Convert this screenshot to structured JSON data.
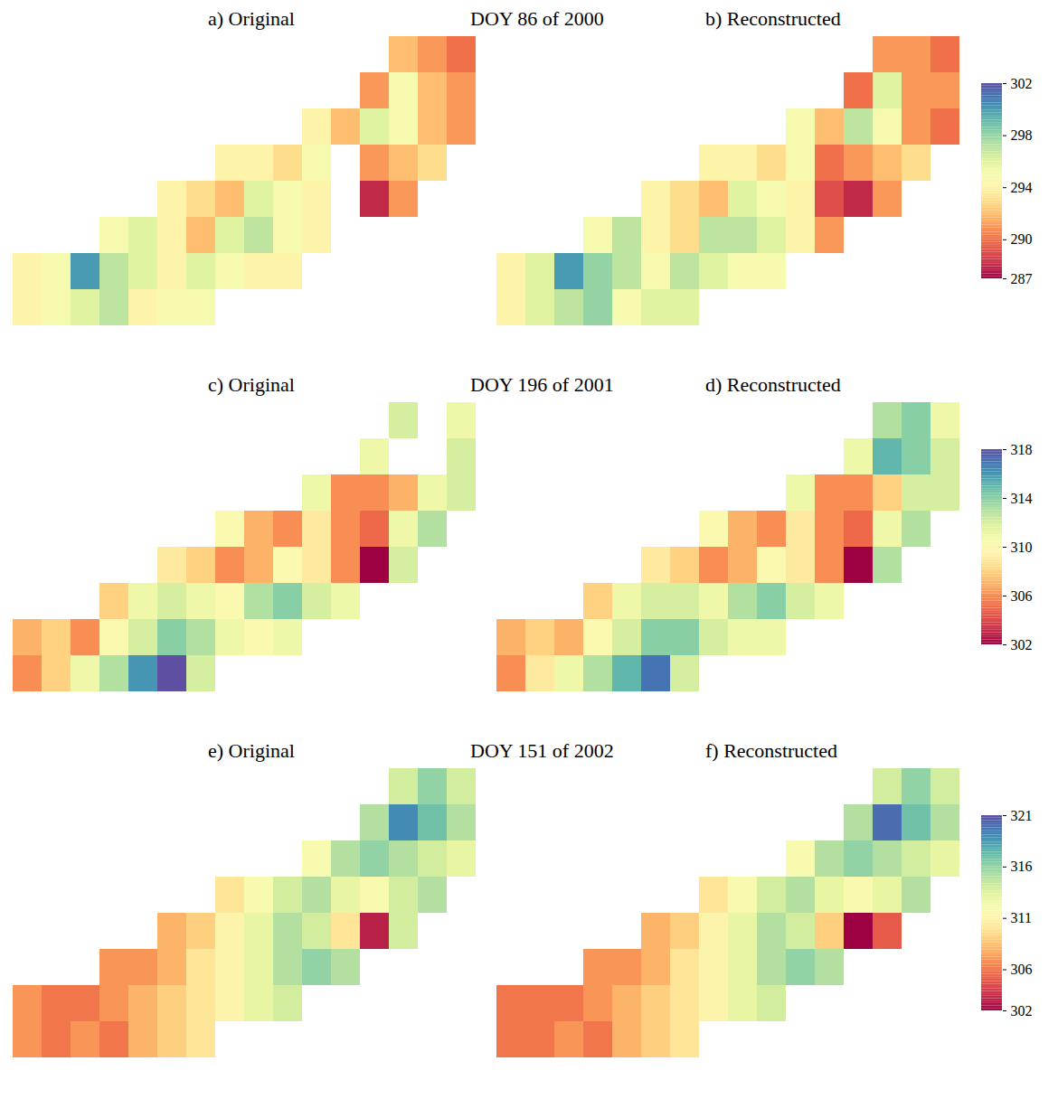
{
  "chart_data": [
    {
      "type": "heatmap",
      "title": "DOY 86 of 2000",
      "colorbar": {
        "range": [
          287,
          302
        ],
        "ticks": [
          302,
          298,
          294,
          290,
          287
        ]
      },
      "panels": [
        {
          "title": "a) Original",
          "cells": [
            [
              null,
              null,
              null,
              null,
              null,
              null,
              null,
              null,
              null,
              null,
              null,
              null,
              null,
              292,
              291,
              290
            ],
            [
              null,
              null,
              null,
              null,
              null,
              null,
              null,
              null,
              null,
              null,
              null,
              null,
              291,
              295,
              292,
              291
            ],
            [
              null,
              null,
              null,
              null,
              null,
              null,
              null,
              null,
              null,
              null,
              294,
              292,
              296,
              295,
              292,
              291
            ],
            [
              null,
              null,
              null,
              null,
              null,
              null,
              null,
              294,
              294,
              293,
              295,
              null,
              291,
              292,
              293,
              null
            ],
            [
              null,
              null,
              null,
              null,
              null,
              294,
              293,
              292,
              296,
              295,
              294,
              null,
              288,
              291,
              null,
              null
            ],
            [
              null,
              null,
              null,
              295,
              296,
              294,
              292,
              296,
              297,
              295,
              294,
              null,
              null,
              null,
              null,
              null
            ],
            [
              294,
              295,
              300,
              297,
              296,
              294,
              296,
              295,
              294,
              294,
              null,
              null,
              null,
              null,
              null,
              null
            ],
            [
              294,
              295,
              296,
              297,
              294,
              295,
              295,
              null,
              null,
              null,
              null,
              null,
              null,
              null,
              null,
              null
            ]
          ]
        },
        {
          "title": "b) Reconstructed",
          "cells": [
            [
              null,
              null,
              null,
              null,
              null,
              null,
              null,
              null,
              null,
              null,
              null,
              null,
              null,
              291,
              291,
              290
            ],
            [
              null,
              null,
              null,
              null,
              null,
              null,
              null,
              null,
              null,
              null,
              null,
              null,
              290,
              296,
              291,
              291
            ],
            [
              null,
              null,
              null,
              null,
              null,
              null,
              null,
              null,
              null,
              null,
              295,
              292,
              297,
              295,
              291,
              290
            ],
            [
              null,
              null,
              null,
              null,
              null,
              null,
              null,
              294,
              294,
              293,
              295,
              290,
              291,
              292,
              293,
              null
            ],
            [
              null,
              null,
              null,
              null,
              null,
              294,
              293,
              292,
              296,
              295,
              294,
              289,
              288,
              291,
              null,
              null
            ],
            [
              null,
              null,
              null,
              295,
              297,
              294,
              293,
              297,
              297,
              296,
              294,
              291,
              null,
              null,
              null,
              null
            ],
            [
              294,
              296,
              300,
              298,
              297,
              295,
              297,
              296,
              295,
              295,
              null,
              null,
              null,
              null,
              null,
              null
            ],
            [
              294,
              296,
              297,
              298,
              295,
              296,
              296,
              null,
              null,
              null,
              null,
              null,
              null,
              null,
              null,
              null
            ]
          ]
        }
      ]
    },
    {
      "type": "heatmap",
      "title": "DOY 196 of 2001",
      "colorbar": {
        "range": [
          302,
          318
        ],
        "ticks": [
          318,
          314,
          310,
          306,
          302
        ]
      },
      "panels": [
        {
          "title": "c) Original",
          "cells": [
            [
              null,
              null,
              null,
              null,
              null,
              null,
              null,
              null,
              null,
              null,
              null,
              null,
              null,
              312,
              null,
              311
            ],
            [
              null,
              null,
              null,
              null,
              null,
              null,
              null,
              null,
              null,
              null,
              null,
              null,
              311,
              null,
              null,
              312
            ],
            [
              null,
              null,
              null,
              null,
              null,
              null,
              null,
              null,
              null,
              null,
              311,
              306,
              306,
              307,
              311,
              312
            ],
            [
              null,
              null,
              null,
              null,
              null,
              null,
              null,
              310,
              307,
              306,
              309,
              306,
              305,
              311,
              313,
              null
            ],
            [
              null,
              null,
              null,
              null,
              null,
              309,
              308,
              306,
              307,
              310,
              309,
              306,
              302,
              312,
              null,
              null
            ],
            [
              null,
              null,
              null,
              308,
              311,
              312,
              311,
              310,
              313,
              314,
              312,
              311,
              null,
              null,
              null,
              null
            ],
            [
              307,
              308,
              306,
              310,
              312,
              314,
              313,
              311,
              310,
              311,
              null,
              null,
              null,
              null,
              null,
              null
            ],
            [
              306,
              308,
              311,
              313,
              316,
              318,
              312,
              null,
              null,
              null,
              null,
              null,
              null,
              null,
              null,
              null
            ]
          ]
        },
        {
          "title": "d) Reconstructed",
          "cells": [
            [
              null,
              null,
              null,
              null,
              null,
              null,
              null,
              null,
              null,
              null,
              null,
              null,
              null,
              313,
              314,
              311
            ],
            [
              null,
              null,
              null,
              null,
              null,
              null,
              null,
              null,
              null,
              null,
              null,
              null,
              311,
              315,
              314,
              312
            ],
            [
              null,
              null,
              null,
              null,
              null,
              null,
              null,
              null,
              null,
              null,
              311,
              306,
              306,
              308,
              312,
              312
            ],
            [
              null,
              null,
              null,
              null,
              null,
              null,
              null,
              310,
              307,
              306,
              309,
              306,
              305,
              311,
              313,
              null
            ],
            [
              null,
              null,
              null,
              null,
              null,
              309,
              308,
              306,
              307,
              310,
              309,
              306,
              302,
              313,
              null,
              null
            ],
            [
              null,
              null,
              null,
              308,
              311,
              312,
              312,
              311,
              313,
              314,
              312,
              311,
              null,
              null,
              null,
              null
            ],
            [
              307,
              308,
              307,
              310,
              312,
              314,
              314,
              312,
              311,
              311,
              null,
              null,
              null,
              null,
              null,
              null
            ],
            [
              306,
              309,
              311,
              313,
              315,
              317,
              312,
              null,
              null,
              null,
              null,
              null,
              null,
              null,
              null,
              null
            ]
          ]
        }
      ]
    },
    {
      "type": "heatmap",
      "title": "DOY 151 of 2002",
      "colorbar": {
        "range": [
          302,
          321
        ],
        "ticks": [
          321,
          316,
          311,
          306,
          302
        ]
      },
      "panels": [
        {
          "title": "e) Original",
          "cells": [
            [
              null,
              null,
              null,
              null,
              null,
              null,
              null,
              null,
              null,
              null,
              null,
              null,
              null,
              314,
              316,
              314
            ],
            [
              null,
              null,
              null,
              null,
              null,
              null,
              null,
              null,
              null,
              null,
              null,
              null,
              315,
              319,
              317,
              315
            ],
            [
              null,
              null,
              null,
              null,
              null,
              null,
              null,
              null,
              null,
              null,
              312,
              315,
              316,
              315,
              314,
              313
            ],
            [
              null,
              null,
              null,
              null,
              null,
              null,
              null,
              310,
              312,
              314,
              315,
              313,
              312,
              314,
              315,
              null
            ],
            [
              null,
              null,
              null,
              null,
              null,
              308,
              309,
              311,
              313,
              315,
              314,
              310,
              303,
              314,
              null,
              null
            ],
            [
              null,
              null,
              null,
              307,
              307,
              308,
              310,
              311,
              313,
              315,
              316,
              315,
              null,
              null,
              null,
              null
            ],
            [
              307,
              306,
              306,
              307,
              308,
              309,
              310,
              311,
              313,
              314,
              null,
              null,
              null,
              null,
              null,
              null
            ],
            [
              307,
              306,
              307,
              306,
              308,
              309,
              310,
              null,
              null,
              null,
              null,
              null,
              null,
              null,
              null,
              null
            ]
          ]
        },
        {
          "title": "f) Reconstructed",
          "cells": [
            [
              null,
              null,
              null,
              null,
              null,
              null,
              null,
              null,
              null,
              null,
              null,
              null,
              null,
              314,
              316,
              314
            ],
            [
              null,
              null,
              null,
              null,
              null,
              null,
              null,
              null,
              null,
              null,
              null,
              null,
              315,
              320,
              317,
              315
            ],
            [
              null,
              null,
              null,
              null,
              null,
              null,
              null,
              null,
              null,
              null,
              312,
              315,
              316,
              315,
              314,
              313
            ],
            [
              null,
              null,
              null,
              null,
              null,
              null,
              null,
              310,
              312,
              314,
              315,
              313,
              312,
              313,
              315,
              null
            ],
            [
              null,
              null,
              null,
              null,
              null,
              308,
              309,
              311,
              313,
              315,
              314,
              309,
              302,
              305,
              null,
              null
            ],
            [
              null,
              null,
              null,
              307,
              307,
              308,
              310,
              311,
              313,
              315,
              316,
              315,
              null,
              null,
              null,
              null
            ],
            [
              306,
              306,
              306,
              307,
              308,
              309,
              310,
              311,
              313,
              314,
              null,
              null,
              null,
              null,
              null,
              null
            ],
            [
              306,
              306,
              307,
              306,
              308,
              309,
              310,
              null,
              null,
              null,
              null,
              null,
              null,
              null,
              null,
              null
            ]
          ]
        }
      ]
    }
  ]
}
